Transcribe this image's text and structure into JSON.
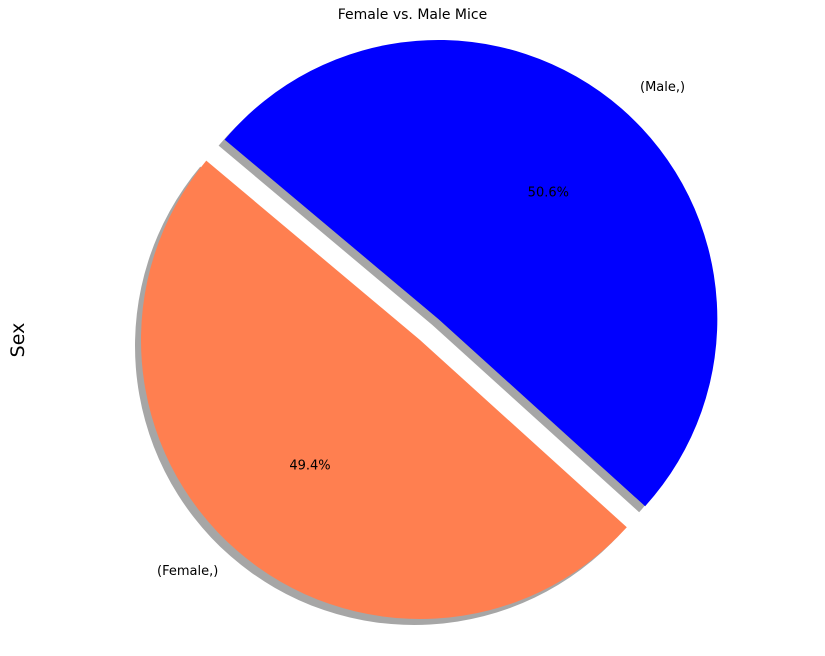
{
  "chart_data": {
    "type": "pie",
    "title": "Female vs. Male Mice",
    "ylabel": "Sex",
    "slices": [
      {
        "label": "(Female,)",
        "value": 49.4,
        "pct_label": "49.4%",
        "color": "#FF7F50",
        "exploded": false
      },
      {
        "label": "(Male,)",
        "value": 50.6,
        "pct_label": "50.6%",
        "color": "#0000FF",
        "exploded": true
      }
    ],
    "shadow": true,
    "start_angle_deg": 140
  }
}
